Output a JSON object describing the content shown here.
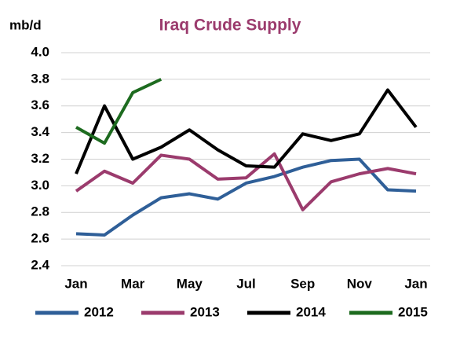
{
  "chart_data": {
    "type": "line",
    "title": "Iraq Crude Supply",
    "y_label": "mb/d",
    "categories": [
      "Jan",
      null,
      "Mar",
      null,
      "May",
      null,
      "Jul",
      null,
      "Sep",
      null,
      "Nov",
      null,
      "Jan"
    ],
    "series": [
      {
        "name": "2012",
        "color": "#2f5f98",
        "values": [
          2.64,
          2.63,
          2.78,
          2.91,
          2.94,
          2.9,
          3.02,
          3.07,
          3.14,
          3.19,
          3.2,
          2.97,
          2.96
        ]
      },
      {
        "name": "2013",
        "color": "#9b3b6d",
        "values": [
          2.96,
          3.11,
          3.02,
          3.23,
          3.2,
          3.05,
          3.06,
          3.24,
          2.82,
          3.03,
          3.09,
          3.13,
          3.09
        ]
      },
      {
        "name": "2014",
        "color": "#000000",
        "values": [
          3.09,
          3.6,
          3.2,
          3.29,
          3.42,
          3.27,
          3.15,
          3.14,
          3.39,
          3.34,
          3.39,
          3.72,
          3.44
        ]
      },
      {
        "name": "2015",
        "color": "#1d6b1f",
        "values": [
          3.44,
          3.32,
          3.7,
          3.8,
          null,
          null,
          null,
          null,
          null,
          null,
          null,
          null,
          null
        ]
      }
    ],
    "ylim": [
      2.4,
      4.0
    ],
    "yticks": [
      {
        "value": 2.4,
        "label": "2.4"
      },
      {
        "value": 2.6,
        "label": "2.6"
      },
      {
        "value": 2.8,
        "label": "2.8"
      },
      {
        "value": 3.0,
        "label": "3.0"
      },
      {
        "value": 3.2,
        "label": "3.2"
      },
      {
        "value": 3.4,
        "label": "3.4"
      },
      {
        "value": 3.6,
        "label": "3.6"
      },
      {
        "value": 3.8,
        "label": "3.8"
      },
      {
        "value": 4.0,
        "label": "4.0"
      }
    ],
    "grid": true,
    "legend": "bottom"
  }
}
